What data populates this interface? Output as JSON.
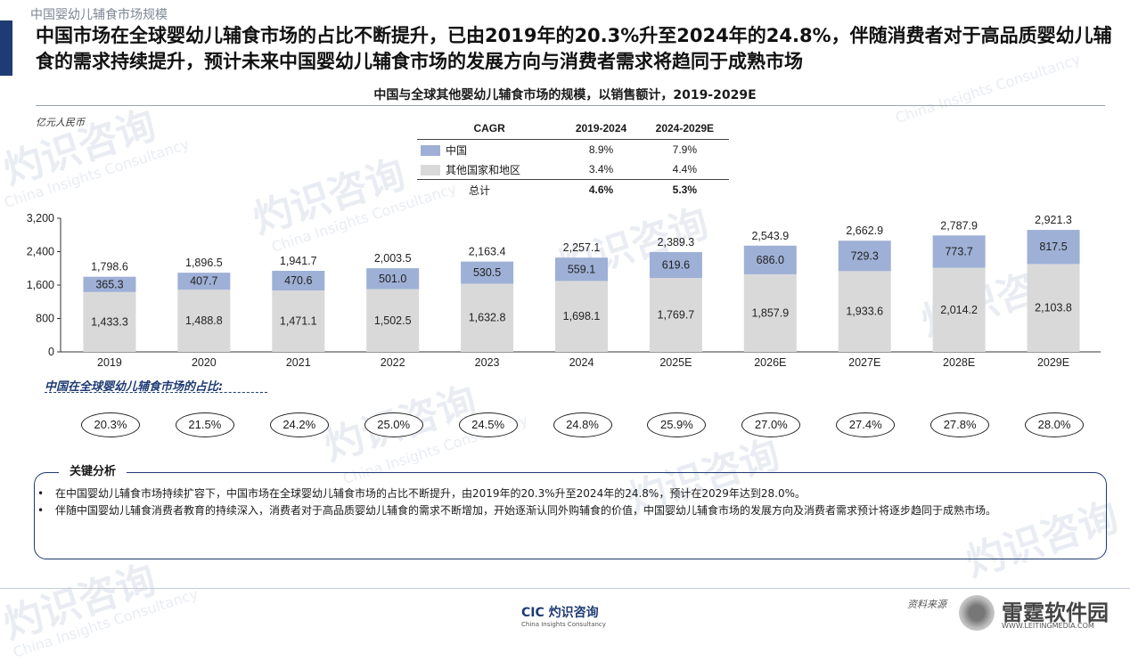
{
  "section_label": "中国婴幼儿辅食市场规模",
  "headline": "中国市场在全球婴幼儿辅食市场的占比不断提升，已由2019年的20.3%升至2024年的24.8%，伴随消费者对于高品质婴幼儿辅食的需求持续提升，预计未来中国婴幼儿辅食市场的发展方向与消费者需求将趋同于成熟市场",
  "cagr_table": {
    "headers": [
      "CAGR",
      "2019-2024",
      "2024-2029E"
    ],
    "rows": [
      {
        "label": "中国",
        "v1": "8.9%",
        "v2": "7.9%"
      },
      {
        "label": "其他国家和地区",
        "v1": "3.4%",
        "v2": "4.4%"
      }
    ],
    "total": {
      "label": "总计",
      "v1": "4.6%",
      "v2": "5.3%"
    }
  },
  "chart_data": {
    "type": "bar",
    "stacked": true,
    "title": "中国与全球其他婴幼儿辅食市场的规模，以销售额计，2019-2029E",
    "unit_label": "亿元人民币",
    "categories": [
      "2019",
      "2020",
      "2021",
      "2022",
      "2023",
      "2024",
      "2025E",
      "2026E",
      "2027E",
      "2028E",
      "2029E"
    ],
    "series": [
      {
        "name": "其他国家和地区",
        "color": "#d9d9d9",
        "values": [
          1433.3,
          1488.8,
          1471.1,
          1502.5,
          1632.8,
          1698.1,
          1769.7,
          1857.9,
          1933.6,
          2014.2,
          2103.8
        ],
        "labels": [
          "1,433.3",
          "1,488.8",
          "1,471.1",
          "1,502.5",
          "1,632.8",
          "1,698.1",
          "1,769.7",
          "1,857.9",
          "1,933.6",
          "2,014.2",
          "2,103.8"
        ]
      },
      {
        "name": "中国",
        "color": "#9eb0d6",
        "values": [
          365.3,
          407.7,
          470.6,
          501.0,
          530.5,
          559.1,
          619.6,
          686.0,
          729.3,
          773.7,
          817.5
        ],
        "labels": [
          "365.3",
          "407.7",
          "470.6",
          "501.0",
          "530.5",
          "559.1",
          "619.6",
          "686.0",
          "729.3",
          "773.7",
          "817.5"
        ]
      }
    ],
    "totals": [
      "1,798.6",
      "1,896.5",
      "1,941.7",
      "2,003.5",
      "2,163.4",
      "2,257.1",
      "2,389.3",
      "2,543.9",
      "2,662.9",
      "2,787.9",
      "2,921.3"
    ],
    "total_values": [
      1798.6,
      1896.5,
      1941.7,
      2003.5,
      2163.4,
      2257.1,
      2389.3,
      2543.9,
      2662.9,
      2787.9,
      2921.3
    ],
    "ylim": [
      0,
      3200
    ],
    "yticks": [
      0,
      800,
      1600,
      2400,
      3200
    ],
    "ytick_labels": [
      "0",
      "800",
      "1,600",
      "2,400",
      "3,200"
    ],
    "grid": false
  },
  "share": {
    "label": "中国在全球婴幼儿辅食市场的占比:",
    "values": [
      "20.3%",
      "21.5%",
      "24.2%",
      "25.0%",
      "24.5%",
      "24.8%",
      "25.9%",
      "27.0%",
      "27.4%",
      "27.8%",
      "28.0%"
    ]
  },
  "analysis": {
    "title": "关键分析",
    "bullets": [
      {
        "dot": "•",
        "text": "在中国婴幼儿辅食市场持续扩容下，中国市场在全球婴幼儿辅食市场的占比不断提升，由2019年的20.3%升至2024年的24.8%，预计在2029年达到28.0%。"
      },
      {
        "dot": "•",
        "text": "伴随中国婴幼儿辅食消费者教育的持续深入，消费者对于高品质婴幼儿辅食的需求不断增加，开始逐渐认同外购辅食的价值，中国婴幼儿辅食市场的发展方向及消费者需求预计将逐步趋同于成熟市场。"
      }
    ]
  },
  "footer": {
    "logo": "CIC 灼识咨询",
    "logo_sub": "China Insights Consultancy",
    "source": "资料来源"
  },
  "watermarks": {
    "cn": "灼识咨询",
    "en": "China Insights Consultancy",
    "brand": "雷霆软件园",
    "brand_url": "WWW.LEITINGMEDIA.COM"
  },
  "colors": {
    "accent": "#1f3b73",
    "china": "#9eb0d6",
    "others": "#d9d9d9"
  }
}
